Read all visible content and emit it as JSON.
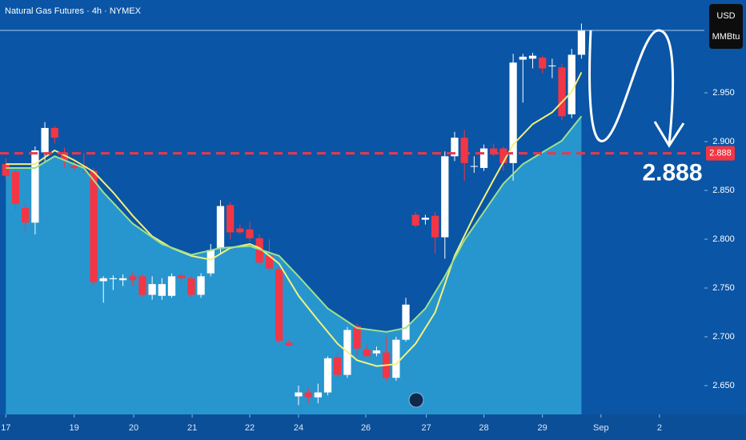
{
  "chart_data": {
    "type": "candlestick",
    "title": "Natural Gas Futures · 4h · NYMEX",
    "y_unit": "USD",
    "y_unit_sub": "MMBtu",
    "up_color": "#ffffff",
    "down_color": "#f23645",
    "x": [
      0,
      1,
      2,
      3,
      4,
      5,
      6,
      7,
      8,
      9,
      10,
      11,
      12,
      13,
      14,
      15,
      16,
      17,
      18,
      19,
      20,
      21,
      22,
      23,
      24,
      25,
      26,
      27,
      28,
      29,
      30,
      31,
      32,
      33,
      34,
      35,
      36,
      37,
      38,
      39,
      40,
      41,
      42,
      43,
      44,
      45,
      46,
      47,
      48,
      49,
      50,
      51,
      52,
      53,
      54,
      55,
      56,
      57,
      58,
      59
    ],
    "open": [
      2.877,
      2.869,
      2.832,
      2.817,
      2.889,
      2.914,
      2.889,
      2.875,
      2.875,
      2.87,
      2.757,
      2.759,
      2.758,
      2.762,
      2.762,
      2.743,
      2.742,
      2.742,
      2.763,
      2.76,
      2.743,
      2.765,
      2.791,
      2.835,
      2.811,
      2.81,
      2.801,
      2.783,
      2.769,
      2.694,
      2.639,
      2.643,
      2.638,
      2.643,
      2.679,
      2.661,
      2.711,
      2.687,
      2.683,
      2.684,
      2.658,
      2.697,
      2.825,
      2.82,
      2.824,
      2.802,
      2.885,
      2.904,
      2.875,
      2.873,
      2.893,
      2.893,
      2.878,
      2.984,
      2.985,
      2.986,
      2.978,
      2.976,
      2.928,
      2.989
    ],
    "high": [
      2.883,
      2.872,
      2.836,
      2.895,
      2.92,
      2.916,
      2.894,
      2.88,
      2.888,
      2.873,
      2.762,
      2.763,
      2.764,
      2.766,
      2.764,
      2.762,
      2.76,
      2.765,
      2.766,
      2.763,
      2.765,
      2.795,
      2.84,
      2.838,
      2.815,
      2.818,
      2.805,
      2.8,
      2.772,
      2.697,
      2.65,
      2.648,
      2.652,
      2.68,
      2.685,
      2.71,
      2.714,
      2.692,
      2.69,
      2.7,
      2.7,
      2.74,
      2.828,
      2.825,
      2.828,
      2.89,
      2.91,
      2.912,
      2.885,
      2.897,
      2.898,
      2.895,
      2.99,
      2.99,
      2.991,
      2.988,
      2.985,
      2.98,
      2.995,
      3.021
    ],
    "low": [
      2.861,
      2.83,
      2.807,
      2.805,
      2.88,
      2.898,
      2.873,
      2.87,
      2.868,
      2.752,
      2.735,
      2.748,
      2.752,
      2.752,
      2.74,
      2.738,
      2.738,
      2.74,
      2.756,
      2.74,
      2.74,
      2.762,
      2.785,
      2.8,
      2.805,
      2.798,
      2.773,
      2.765,
      2.694,
      2.69,
      2.63,
      2.632,
      2.632,
      2.64,
      2.658,
      2.658,
      2.68,
      2.68,
      2.68,
      2.655,
      2.655,
      2.695,
      2.812,
      2.815,
      2.785,
      2.78,
      2.88,
      2.86,
      2.868,
      2.87,
      2.885,
      2.87,
      2.86,
      2.94,
      2.975,
      2.97,
      2.965,
      2.922,
      2.924,
      2.985
    ],
    "close": [
      2.865,
      2.836,
      2.817,
      2.891,
      2.914,
      2.904,
      2.881,
      2.873,
      2.874,
      2.756,
      2.76,
      2.76,
      2.76,
      2.758,
      2.743,
      2.754,
      2.754,
      2.762,
      2.76,
      2.743,
      2.762,
      2.789,
      2.834,
      2.807,
      2.807,
      2.801,
      2.776,
      2.77,
      2.696,
      2.691,
      2.643,
      2.638,
      2.643,
      2.678,
      2.661,
      2.707,
      2.688,
      2.68,
      2.686,
      2.658,
      2.697,
      2.733,
      2.814,
      2.822,
      2.802,
      2.885,
      2.904,
      2.878,
      2.875,
      2.893,
      2.889,
      2.878,
      2.981,
      2.987,
      2.988,
      2.975,
      2.978,
      2.926,
      2.989,
      3.014
    ],
    "moving_averages": [
      {
        "color": "#f5f07a",
        "x": [
          0,
          3,
          5,
          7,
          9,
          11,
          13,
          15,
          17,
          19,
          21,
          23,
          25,
          26,
          28,
          30,
          32,
          34,
          36,
          38,
          40,
          42,
          44,
          46,
          48,
          50,
          52,
          54,
          56,
          58,
          59
        ],
        "values": [
          2.877,
          2.877,
          2.891,
          2.881,
          2.869,
          2.848,
          2.824,
          2.803,
          2.791,
          2.783,
          2.779,
          2.791,
          2.795,
          2.791,
          2.775,
          2.742,
          2.717,
          2.693,
          2.676,
          2.67,
          2.672,
          2.693,
          2.725,
          2.783,
          2.824,
          2.861,
          2.897,
          2.918,
          2.93,
          2.951,
          2.971
        ]
      },
      {
        "color": "#9fe08a",
        "fill": "#2796cf",
        "x": [
          0,
          3,
          5,
          8,
          10,
          13,
          16,
          19,
          22,
          25,
          28,
          30,
          33,
          36,
          39,
          41,
          43,
          45,
          47,
          49,
          51,
          53,
          55,
          57,
          59
        ],
        "values": [
          2.873,
          2.873,
          2.885,
          2.873,
          2.848,
          2.816,
          2.795,
          2.784,
          2.791,
          2.793,
          2.783,
          2.762,
          2.729,
          2.709,
          2.705,
          2.709,
          2.729,
          2.762,
          2.799,
          2.828,
          2.857,
          2.877,
          2.889,
          2.901,
          2.926
        ]
      }
    ],
    "level": {
      "value": 2.888,
      "label": "2.888",
      "color": "#f23645"
    },
    "xlim": [
      -0.6,
      71.6
    ],
    "ylim": [
      2.6205,
      3.0451
    ],
    "yticks": [
      {
        "value": 2.65,
        "label": "2.650"
      },
      {
        "value": 2.7,
        "label": "2.700"
      },
      {
        "value": 2.75,
        "label": "2.750"
      },
      {
        "value": 2.8,
        "label": "2.800"
      },
      {
        "value": 2.85,
        "label": "2.850"
      },
      {
        "value": 2.9,
        "label": "2.900"
      },
      {
        "value": 2.95,
        "label": "2.950"
      }
    ],
    "xticks": [
      {
        "value": 0,
        "label": "17"
      },
      {
        "value": 7,
        "label": "19"
      },
      {
        "value": 13.1,
        "label": "20"
      },
      {
        "value": 19.1,
        "label": "21"
      },
      {
        "value": 25,
        "label": "22"
      },
      {
        "value": 30,
        "label": "24"
      },
      {
        "value": 36.9,
        "label": "26"
      },
      {
        "value": 43.1,
        "label": "27"
      },
      {
        "value": 49,
        "label": "28"
      },
      {
        "value": 55,
        "label": "29"
      },
      {
        "value": 61,
        "label": "Sep"
      },
      {
        "value": 67,
        "label": "2"
      }
    ]
  }
}
